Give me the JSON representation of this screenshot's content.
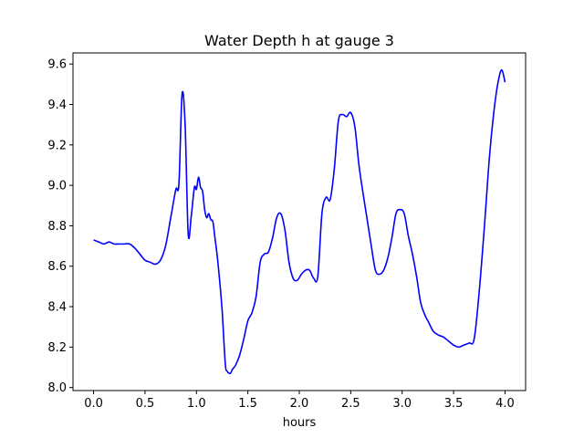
{
  "chart_data": {
    "type": "line",
    "title": "Water Depth h at gauge 3",
    "xlabel": "hours",
    "ylabel": "",
    "xlim": [
      -0.2,
      4.2
    ],
    "ylim": [
      7.985,
      9.655
    ],
    "xticks": [
      0.0,
      0.5,
      1.0,
      1.5,
      2.0,
      2.5,
      3.0,
      3.5,
      4.0
    ],
    "xtick_labels": [
      "0.0",
      "0.5",
      "1.0",
      "1.5",
      "2.0",
      "2.5",
      "3.0",
      "3.5",
      "4.0"
    ],
    "yticks": [
      8.0,
      8.2,
      8.4,
      8.6,
      8.8,
      9.0,
      9.2,
      9.4,
      9.6
    ],
    "ytick_labels": [
      "8.0",
      "8.2",
      "8.4",
      "8.6",
      "8.8",
      "9.0",
      "9.2",
      "9.4",
      "9.6"
    ],
    "grid": false,
    "legend": "none",
    "series": [
      {
        "color": "#0000ff",
        "x": [
          0.0,
          0.05,
          0.1,
          0.15,
          0.2,
          0.25,
          0.3,
          0.35,
          0.4,
          0.45,
          0.5,
          0.55,
          0.6,
          0.65,
          0.7,
          0.75,
          0.8,
          0.83,
          0.86,
          0.89,
          0.92,
          0.95,
          0.98,
          1.0,
          1.02,
          1.04,
          1.06,
          1.08,
          1.1,
          1.12,
          1.14,
          1.16,
          1.18,
          1.2,
          1.22,
          1.25,
          1.28,
          1.3,
          1.33,
          1.35,
          1.38,
          1.42,
          1.46,
          1.5,
          1.54,
          1.58,
          1.62,
          1.66,
          1.7,
          1.74,
          1.78,
          1.82,
          1.86,
          1.9,
          1.94,
          1.98,
          2.02,
          2.06,
          2.1,
          2.14,
          2.18,
          2.22,
          2.26,
          2.3,
          2.34,
          2.38,
          2.42,
          2.46,
          2.5,
          2.54,
          2.58,
          2.62,
          2.66,
          2.7,
          2.74,
          2.78,
          2.82,
          2.86,
          2.9,
          2.94,
          2.98,
          3.02,
          3.06,
          3.1,
          3.14,
          3.18,
          3.22,
          3.26,
          3.3,
          3.35,
          3.4,
          3.45,
          3.5,
          3.55,
          3.6,
          3.65,
          3.7,
          3.75,
          3.8,
          3.85,
          3.9,
          3.94,
          3.97,
          4.0
        ],
        "y": [
          8.73,
          8.72,
          8.71,
          8.72,
          8.71,
          8.71,
          8.71,
          8.71,
          8.69,
          8.66,
          8.63,
          8.62,
          8.61,
          8.63,
          8.7,
          8.84,
          8.98,
          9.01,
          9.45,
          9.3,
          8.76,
          8.85,
          8.99,
          8.98,
          9.04,
          8.99,
          8.97,
          8.88,
          8.84,
          8.86,
          8.83,
          8.82,
          8.74,
          8.66,
          8.56,
          8.38,
          8.12,
          8.08,
          8.07,
          8.09,
          8.11,
          8.16,
          8.24,
          8.33,
          8.37,
          8.45,
          8.62,
          8.66,
          8.67,
          8.74,
          8.84,
          8.86,
          8.78,
          8.62,
          8.54,
          8.53,
          8.56,
          8.58,
          8.58,
          8.54,
          8.55,
          8.86,
          8.94,
          8.93,
          9.08,
          9.32,
          9.35,
          9.34,
          9.36,
          9.29,
          9.1,
          8.96,
          8.83,
          8.7,
          8.58,
          8.56,
          8.58,
          8.64,
          8.74,
          8.86,
          8.88,
          8.86,
          8.75,
          8.66,
          8.55,
          8.42,
          8.36,
          8.32,
          8.28,
          8.26,
          8.25,
          8.23,
          8.21,
          8.2,
          8.21,
          8.22,
          8.24,
          8.48,
          8.8,
          9.15,
          9.4,
          9.53,
          9.57,
          9.51
        ]
      }
    ]
  }
}
